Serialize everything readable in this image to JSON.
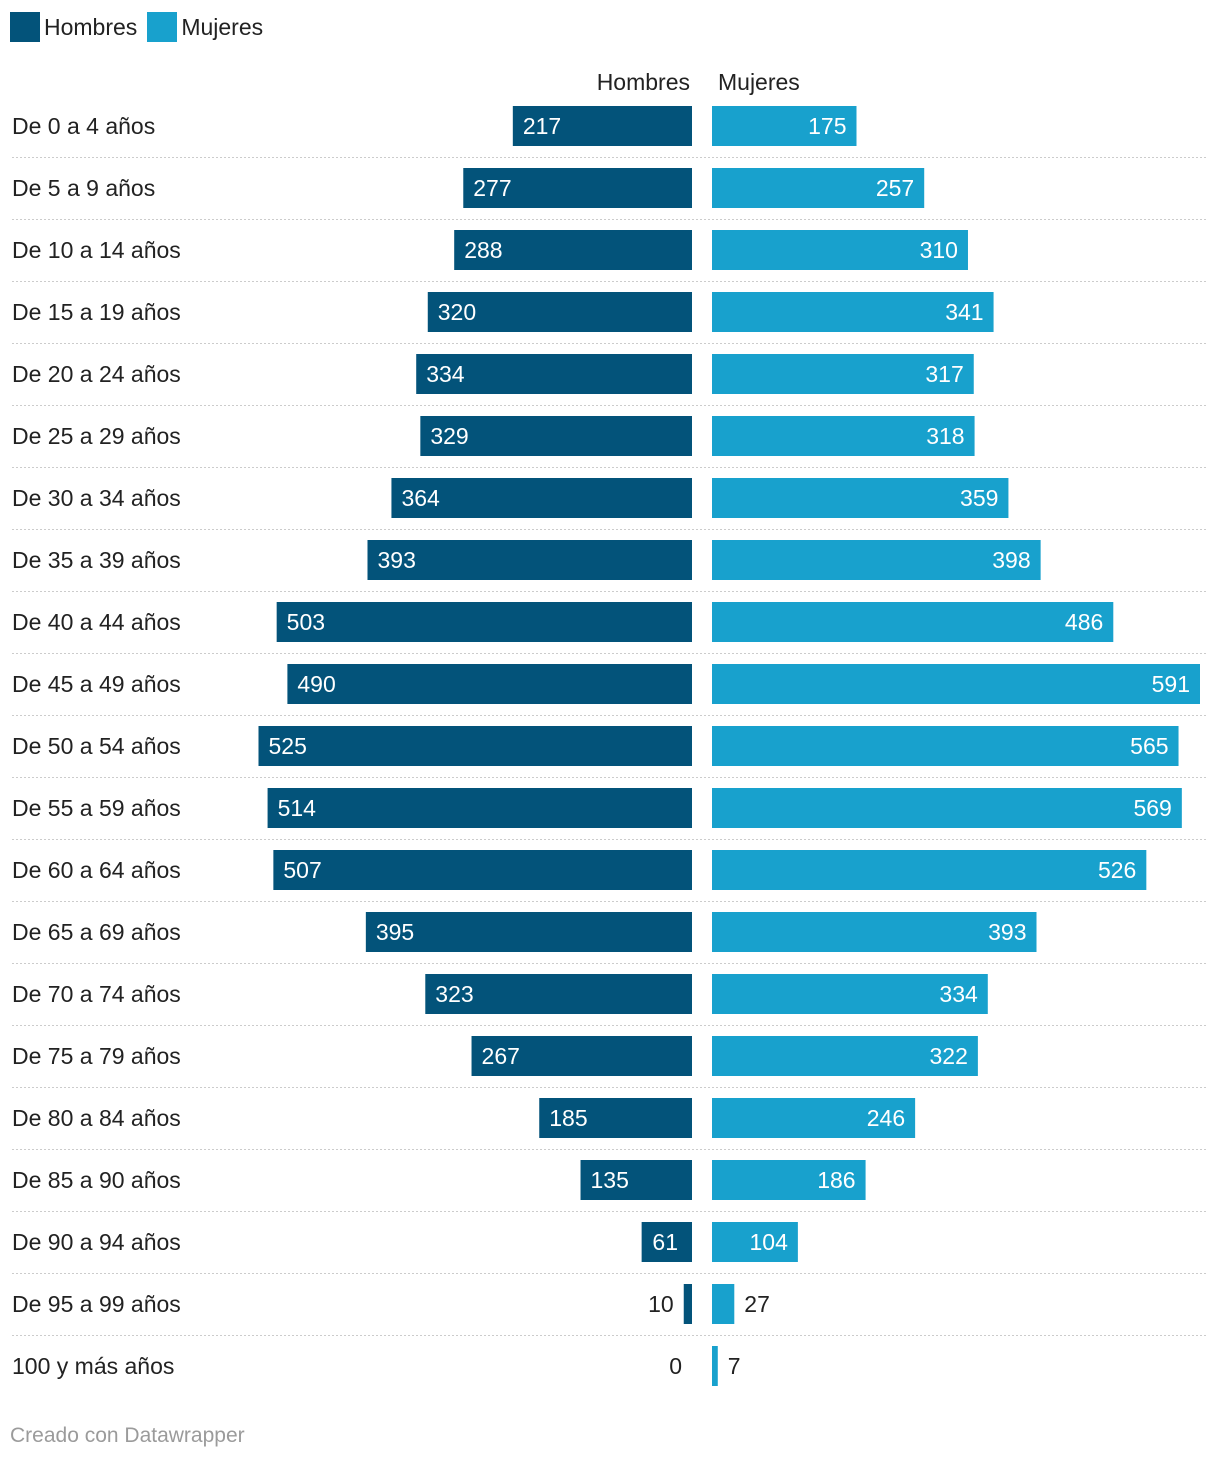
{
  "legend": {
    "men_label": "Hombres",
    "women_label": "Mujeres"
  },
  "columns": {
    "men_header": "Hombres",
    "women_header": "Mujeres"
  },
  "colors": {
    "men": "#03537a",
    "women": "#18a1cd",
    "grid": "#cccccc"
  },
  "footer": "Creado con Datawrapper",
  "chart_data": {
    "type": "bar",
    "orientation": "horizontal-split",
    "title": "",
    "categories": [
      "De 0 a 4 años",
      "De 5 a 9 años",
      "De 10 a 14 años",
      "De 15 a 19 años",
      "De 20 a 24 años",
      "De 25 a 29 años",
      "De 30 a 34 años",
      "De 35 a 39 años",
      "De 40 a 44 años",
      "De 45 a 49 años",
      "De 50 a 54 años",
      "De 55 a 59 años",
      "De 60 a 64 años",
      "De 65 a 69 años",
      "De 70 a 74 años",
      "De 75 a 79 años",
      "De 80 a 84 años",
      "De 85 a 90 años",
      "De 90 a 94 años",
      "De 95 a 99 años",
      "100 y más años"
    ],
    "series": [
      {
        "name": "Hombres",
        "values": [
          217,
          277,
          288,
          320,
          334,
          329,
          364,
          393,
          503,
          490,
          525,
          514,
          507,
          395,
          323,
          267,
          185,
          135,
          61,
          10,
          0
        ]
      },
      {
        "name": "Mujeres",
        "values": [
          175,
          257,
          310,
          341,
          317,
          318,
          359,
          398,
          486,
          591,
          565,
          569,
          526,
          393,
          334,
          322,
          246,
          186,
          104,
          27,
          7
        ]
      }
    ],
    "xlim": [
      0,
      591
    ],
    "legend": "top-left"
  }
}
